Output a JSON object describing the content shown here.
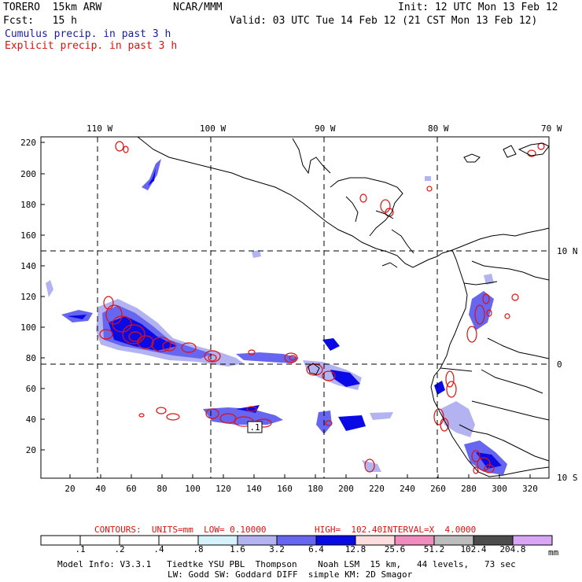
{
  "header": {
    "model_name": "TORERO  15km ARW",
    "institution": "NCAR/MMM",
    "init_time": "Init: 12 UTC Mon 13 Feb 12",
    "forecast_hour": "Fcst:   15 h",
    "valid_time": "Valid: 03 UTC Tue 14 Feb 12 (21 CST Mon 13 Feb 12)",
    "field_1": "Cumulus precip. in past 3 h",
    "field_2": "Explicit precip. in past 3 h",
    "field_1_color": "#1a1aa6",
    "field_2_color": "#e01010"
  },
  "map": {
    "longitude_labels": [
      "110 W",
      "100 W",
      "90 W",
      "80 W",
      "70 W"
    ],
    "latitude_labels": [
      "10 N",
      "0",
      "10 S"
    ],
    "y_ticks": [
      "220",
      "200",
      "180",
      "160",
      "140",
      "120",
      "100",
      "80",
      "60",
      "40",
      "20"
    ],
    "x_ticks": [
      "20",
      "40",
      "60",
      "80",
      "100",
      "120",
      "140",
      "160",
      "180",
      "200",
      "220",
      "240",
      "260",
      "280",
      "300",
      "320"
    ],
    "max_label": ".1",
    "grid_color": "#000000",
    "coast_color": "#000000"
  },
  "contour_info": {
    "units": "CONTOURS:  UNITS=mm  LOW= 0.10000",
    "high": "HIGH=  102.40",
    "interval": "INTERVAL=X  4.0000",
    "color": "#e01010"
  },
  "colorbar": {
    "labels": [
      ".1",
      ".2",
      ".4",
      ".8",
      "1.6",
      "3.2",
      "6.4",
      "12.8",
      "25.6",
      "51.2",
      "102.4",
      "204.8"
    ],
    "colors": [
      "#ffffff",
      "#ffffff",
      "#ffffff",
      "#ffffff",
      "#d6f3fb",
      "#b3b3f2",
      "#6666f0",
      "#0a0ae6",
      "#fcdede",
      "#f08cbe",
      "#bdbdbd",
      "#4c4c4c",
      "#d9a6f6"
    ],
    "unit": "mm"
  },
  "footer": {
    "line_1": "Model Info: V3.3.1   Tiedtke YSU PBL  Thompson    Noah LSM  15 km,   44 levels,   73 sec",
    "line_2": "LW: Godd SW: Goddard DIFF  simple KM: 2D Smagor"
  }
}
